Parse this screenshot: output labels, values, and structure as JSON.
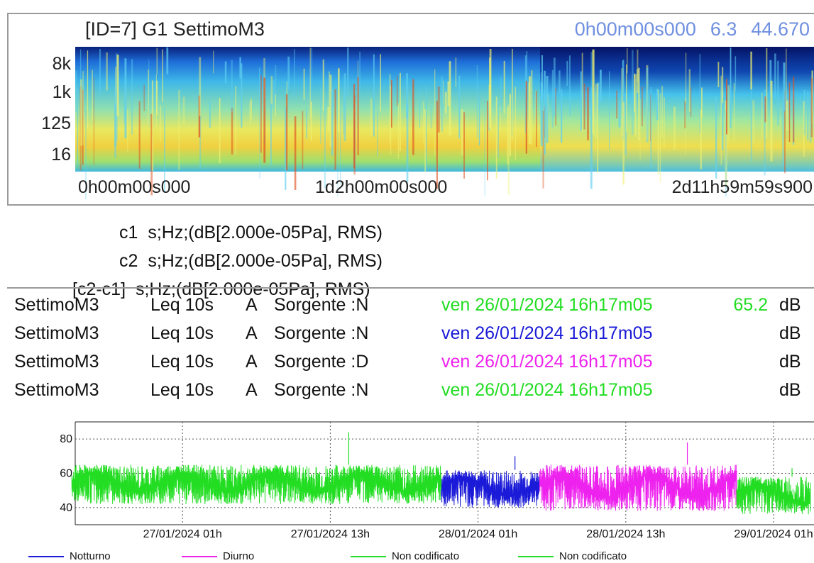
{
  "spectrogram": {
    "title": "[ID=7] G1 SettimoM3",
    "readout": {
      "time": "0h00m00s000",
      "v1": "6.3",
      "v2": "44.670"
    },
    "y_ticks": [
      "8k",
      "1k",
      "125",
      "16"
    ],
    "x_ticks": [
      "0h00m00s000",
      "1d2h00m00s000",
      "2d11h59m59s900"
    ]
  },
  "channels": [
    {
      "id": "c1",
      "desc": "s;Hz;(dB[2.000e-05Pa], RMS)"
    },
    {
      "id": "c2",
      "desc": "s;Hz;(dB[2.000e-05Pa], RMS)"
    },
    {
      "id": "[c2-c1]",
      "desc": "s;Hz;(dB[2.000e-05Pa], RMS)"
    }
  ],
  "rows": [
    {
      "name": "SettimoM3",
      "metric": "Leq 10s",
      "weight": "A",
      "source": "Sorgente :N",
      "datetime": "ven 26/01/2024 16h17m05",
      "value": "65.2",
      "unit": "dB",
      "color": "#22dd22"
    },
    {
      "name": "SettimoM3",
      "metric": "Leq 10s",
      "weight": "A",
      "source": "Sorgente :N",
      "datetime": "ven 26/01/2024 16h17m05",
      "value": "",
      "unit": "dB",
      "color": "#1a1ad8"
    },
    {
      "name": "SettimoM3",
      "metric": "Leq 10s",
      "weight": "A",
      "source": "Sorgente :D",
      "datetime": "ven 26/01/2024 16h17m05",
      "value": "",
      "unit": "dB",
      "color": "#ee22ee"
    },
    {
      "name": "SettimoM3",
      "metric": "Leq 10s",
      "weight": "A",
      "source": "Sorgente :N",
      "datetime": "ven 26/01/2024 16h17m05",
      "value": "",
      "unit": "dB",
      "color": "#22dd22"
    }
  ],
  "chart_data": {
    "type": "line",
    "title": "",
    "xlabel": "",
    "ylabel": "",
    "x_ticks": [
      "27/01/2024 01h",
      "27/01/2024 13h",
      "28/01/2024 01h",
      "28/01/2024 13h",
      "29/01/2024 01h"
    ],
    "x_range": [
      "26/01/2024 16h17m05",
      "29/01/2024 04h17m05"
    ],
    "y_ticks": [
      40,
      60,
      80
    ],
    "ylim": [
      30,
      90
    ],
    "grid": true,
    "legend_position": "bottom",
    "series": [
      {
        "name": "Notturno",
        "color": "#1a1ad8",
        "segments": [
          [
            "27/01/2024 22h",
            "28/01/2024 06h"
          ]
        ],
        "typical_range": [
          40,
          62
        ],
        "peak": 70
      },
      {
        "name": "Diurno",
        "color": "#ee22ee",
        "segments": [
          [
            "28/01/2024 06h",
            "28/01/2024 22h"
          ]
        ],
        "typical_range": [
          38,
          65
        ],
        "peak": 78
      },
      {
        "name": "Non codificato",
        "color": "#22dd22",
        "segments": [
          [
            "26/01/2024 16h",
            "27/01/2024 22h"
          ]
        ],
        "typical_range": [
          42,
          65
        ],
        "peak": 84
      },
      {
        "name": "Non codificato",
        "color": "#22dd22",
        "segments": [
          [
            "28/01/2024 22h",
            "29/01/2024 04h"
          ]
        ],
        "typical_range": [
          36,
          58
        ],
        "peak": 63
      }
    ]
  }
}
